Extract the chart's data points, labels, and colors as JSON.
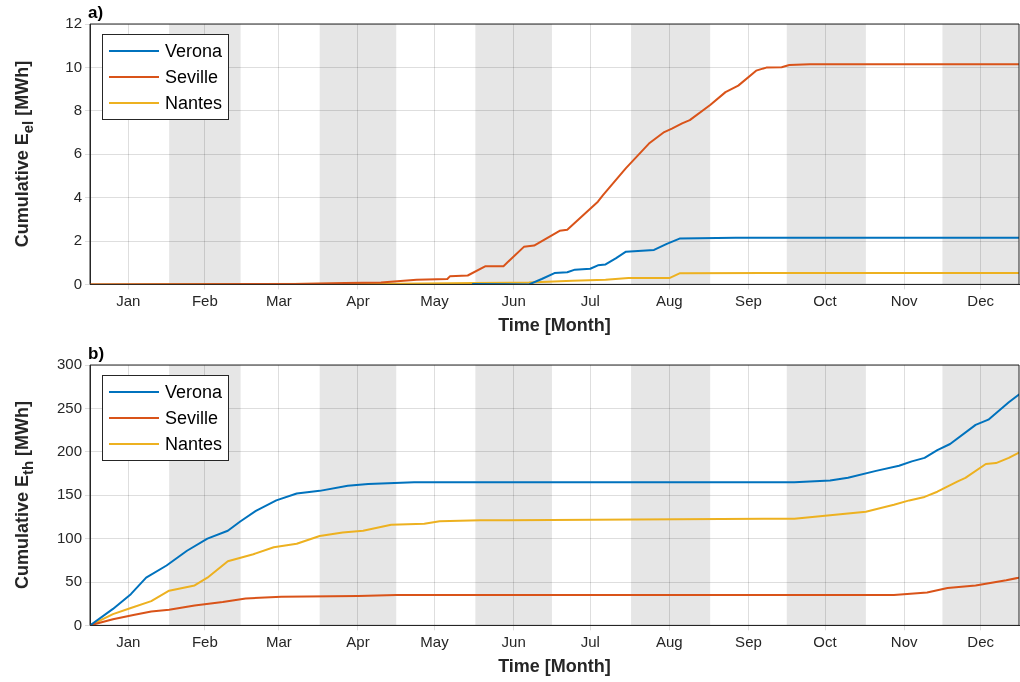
{
  "chart_data": [
    {
      "type": "line",
      "title": "a)",
      "xlabel": "Time [Month]",
      "ylabel": "Cumulative E$_{el}$ [MWh]",
      "xlim": [
        "--01-01",
        "--12-31"
      ],
      "ylim": [
        0,
        12
      ],
      "yticks": [
        0,
        2,
        4,
        6,
        8,
        10,
        12
      ],
      "xticks": [
        {
          "value": "--01-16",
          "label": "Jan"
        },
        {
          "value": "--02-15",
          "label": "Feb"
        },
        {
          "value": "--03-16",
          "label": "Mar"
        },
        {
          "value": "--04-16",
          "label": "Apr"
        },
        {
          "value": "--05-16",
          "label": "May"
        },
        {
          "value": "--06-16",
          "label": "Jun"
        },
        {
          "value": "--07-16",
          "label": "Jul"
        },
        {
          "value": "--08-16",
          "label": "Aug"
        },
        {
          "value": "--09-16",
          "label": "Sep"
        },
        {
          "value": "--10-16",
          "label": "Oct"
        },
        {
          "value": "--11-16",
          "label": "Nov"
        },
        {
          "value": "--12-16",
          "label": "Dec"
        }
      ],
      "bands": [
        {
          "axis": "x",
          "from": "--02-01",
          "to": "--03-01",
          "color": "#e6e6e6"
        },
        {
          "axis": "x",
          "from": "--04-01",
          "to": "--05-01",
          "color": "#e6e6e6"
        },
        {
          "axis": "x",
          "from": "--06-01",
          "to": "--07-01",
          "color": "#e6e6e6"
        },
        {
          "axis": "x",
          "from": "--08-01",
          "to": "--09-01",
          "color": "#e6e6e6"
        },
        {
          "axis": "x",
          "from": "--10-01",
          "to": "--11-01",
          "color": "#e6e6e6"
        },
        {
          "axis": "x",
          "from": "--12-01",
          "to": "--12-31",
          "color": "#e6e6e6"
        }
      ],
      "grid": true,
      "legend": "top left",
      "marker": "none",
      "line_style": "solid",
      "series": [
        {
          "name": "Verona",
          "color": "#0072bd",
          "x": [
            "--05-31",
            "--06-22",
            "--06-27",
            "--07-02",
            "--07-07",
            "--07-10",
            "--07-16",
            "--07-19",
            "--07-22",
            "--07-26",
            "--07-30",
            "--08-10",
            "--08-15",
            "--08-20",
            "--09-11",
            "--12-31"
          ],
          "values": [
            0.02,
            0,
            0.25,
            0.52,
            0.56,
            0.68,
            0.72,
            0.88,
            0.92,
            1.2,
            1.51,
            1.59,
            1.87,
            2.11,
            2.15,
            2.15
          ]
        },
        {
          "name": "Seville",
          "color": "#d95319",
          "x": [
            "--01-01",
            "--03-22",
            "--04-11",
            "--04-25",
            "--05-09",
            "--05-21",
            "--05-22",
            "--05-29",
            "--06-05",
            "--06-12",
            "--06-20",
            "--06-24",
            "--07-04",
            "--07-07",
            "--07-19",
            "--07-21",
            "--07-30",
            "--08-08",
            "--08-14",
            "--08-17",
            "--08-21",
            "--08-24",
            "--09-01",
            "--09-07",
            "--09-12",
            "--09-19",
            "--09-23",
            "--09-29",
            "--10-02",
            "--10-10",
            "--12-31"
          ],
          "values": [
            0,
            0.02,
            0.06,
            0.09,
            0.21,
            0.25,
            0.37,
            0.41,
            0.84,
            0.84,
            1.73,
            1.79,
            2.47,
            2.52,
            3.81,
            4.11,
            5.36,
            6.49,
            7.02,
            7.18,
            7.42,
            7.57,
            8.27,
            8.86,
            9.16,
            9.85,
            9.99,
            10.01,
            10.11,
            10.15,
            10.15
          ]
        },
        {
          "name": "Nantes",
          "color": "#edb120",
          "x": [
            "--01-01",
            "--05-01",
            "--05-31",
            "--06-22",
            "--07-09",
            "--07-22",
            "--07-31",
            "--08-16",
            "--08-20",
            "--09-23",
            "--12-31"
          ],
          "values": [
            0,
            0.03,
            0.06,
            0.09,
            0.17,
            0.21,
            0.29,
            0.29,
            0.51,
            0.53,
            0.53
          ]
        }
      ]
    },
    {
      "type": "line",
      "title": "b)",
      "xlabel": "Time [Month]",
      "ylabel": "Cumulative E$_{th}$ [MWh]",
      "xlim": [
        "--01-01",
        "--12-31"
      ],
      "ylim": [
        0,
        300
      ],
      "yticks": [
        0,
        50,
        100,
        150,
        200,
        250,
        300
      ],
      "xticks": [
        {
          "value": "--01-16",
          "label": "Jan"
        },
        {
          "value": "--02-15",
          "label": "Feb"
        },
        {
          "value": "--03-16",
          "label": "Mar"
        },
        {
          "value": "--04-16",
          "label": "Apr"
        },
        {
          "value": "--05-16",
          "label": "May"
        },
        {
          "value": "--06-16",
          "label": "Jun"
        },
        {
          "value": "--07-16",
          "label": "Jul"
        },
        {
          "value": "--08-16",
          "label": "Aug"
        },
        {
          "value": "--09-16",
          "label": "Sep"
        },
        {
          "value": "--10-16",
          "label": "Oct"
        },
        {
          "value": "--11-16",
          "label": "Nov"
        },
        {
          "value": "--12-16",
          "label": "Dec"
        }
      ],
      "bands": [
        {
          "axis": "x",
          "from": "--02-01",
          "to": "--03-01",
          "color": "#e6e6e6"
        },
        {
          "axis": "x",
          "from": "--04-01",
          "to": "--05-01",
          "color": "#e6e6e6"
        },
        {
          "axis": "x",
          "from": "--06-01",
          "to": "--07-01",
          "color": "#e6e6e6"
        },
        {
          "axis": "x",
          "from": "--08-01",
          "to": "--09-01",
          "color": "#e6e6e6"
        },
        {
          "axis": "x",
          "from": "--10-01",
          "to": "--11-01",
          "color": "#e6e6e6"
        },
        {
          "axis": "x",
          "from": "--12-01",
          "to": "--12-31",
          "color": "#e6e6e6"
        }
      ],
      "grid": true,
      "legend": "top left",
      "marker": "none",
      "line_style": "solid",
      "series": [
        {
          "name": "Verona",
          "color": "#0072bd",
          "x": [
            "--01-01",
            "--01-10",
            "--01-17",
            "--01-23",
            "--01-31",
            "--02-08",
            "--02-16",
            "--02-24",
            "--03-01",
            "--03-07",
            "--03-15",
            "--03-23",
            "--04-01",
            "--04-12",
            "--04-20",
            "--05-08",
            "--10-04",
            "--10-18",
            "--10-25",
            "--11-05",
            "--11-14",
            "--11-19",
            "--11-24",
            "--11-29",
            "--12-04",
            "--12-14",
            "--12-19",
            "--12-27",
            "--12-31"
          ],
          "values": [
            0,
            19,
            36,
            55,
            69,
            86,
            100,
            109,
            120,
            132,
            144,
            152,
            155,
            161,
            163,
            165,
            165,
            167,
            170,
            178,
            184,
            189,
            193,
            202,
            209,
            231,
            237,
            257,
            266
          ]
        },
        {
          "name": "Seville",
          "color": "#d95319",
          "x": [
            "--01-01",
            "--01-10",
            "--01-18",
            "--01-25",
            "--02-01",
            "--02-11",
            "--02-22",
            "--03-03",
            "--03-17",
            "--04-16",
            "--05-01",
            "--11-12",
            "--11-25",
            "--12-03",
            "--12-14",
            "--12-26",
            "--12-31"
          ],
          "values": [
            0,
            7,
            12,
            16,
            18,
            23,
            27,
            31,
            33,
            34,
            35,
            35,
            38,
            43,
            46,
            52,
            55
          ]
        },
        {
          "name": "Nantes",
          "color": "#edb120",
          "x": [
            "--01-01",
            "--01-10",
            "--01-17",
            "--01-25",
            "--02-01",
            "--02-11",
            "--02-16",
            "--02-24",
            "--03-06",
            "--03-14",
            "--03-23",
            "--04-01",
            "--04-10",
            "--04-18",
            "--04-29",
            "--05-12",
            "--05-18",
            "--06-03",
            "--10-04",
            "--10-18",
            "--11-01",
            "--11-12",
            "--11-18",
            "--11-24",
            "--11-29",
            "--12-07",
            "--12-10",
            "--12-18",
            "--12-22",
            "--12-27",
            "--12-31"
          ],
          "values": [
            0,
            13,
            20,
            28,
            40,
            46,
            55,
            74,
            82,
            90,
            94,
            103,
            107,
            109,
            116,
            117,
            120,
            121,
            123,
            127,
            131,
            139,
            144,
            148,
            154,
            166,
            170,
            186,
            187,
            193,
            199
          ]
        }
      ]
    }
  ]
}
